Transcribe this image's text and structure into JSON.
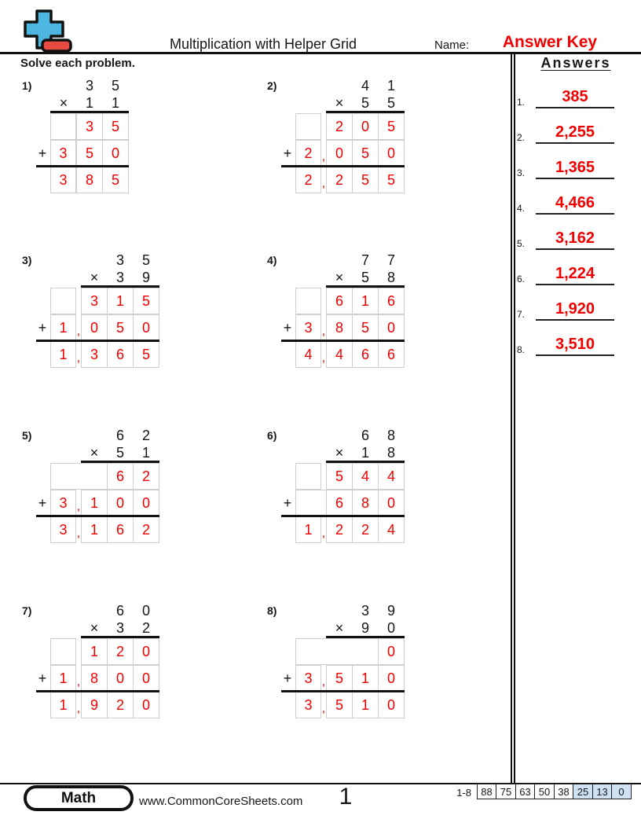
{
  "header": {
    "title": "Multiplication with Helper Grid",
    "name_label": "Name:",
    "name_value": "Answer Key",
    "instructions": "Solve each problem."
  },
  "symbols": {
    "times": "×",
    "plus": "+",
    "comma": ","
  },
  "colors": {
    "accent_red": "#f20000",
    "logo_blue": "#4cb5e0",
    "logo_red": "#e84b3f",
    "score_highlight": "#cfe2f3"
  },
  "problems": [
    {
      "label": "1)",
      "multiplicand": [
        "3",
        "5"
      ],
      "multiplier": [
        "1",
        "1"
      ],
      "columns": 3,
      "rows": [
        {
          "cells": [
            "",
            "3",
            "5"
          ]
        },
        {
          "plus": true,
          "cells": [
            "3",
            "5",
            "0"
          ]
        },
        {
          "total": true,
          "cells": [
            "3",
            "8",
            "5"
          ]
        }
      ]
    },
    {
      "label": "2)",
      "multiplicand": [
        "4",
        "1"
      ],
      "multiplier": [
        "5",
        "5"
      ],
      "columns": 4,
      "rows": [
        {
          "cells": [
            "",
            "2",
            "0",
            "5"
          ]
        },
        {
          "plus": true,
          "comma": true,
          "cells": [
            "2",
            "0",
            "5",
            "0"
          ]
        },
        {
          "total": true,
          "comma": true,
          "cells": [
            "2",
            "2",
            "5",
            "5"
          ]
        }
      ]
    },
    {
      "label": "3)",
      "multiplicand": [
        "3",
        "5"
      ],
      "multiplier": [
        "3",
        "9"
      ],
      "columns": 4,
      "rows": [
        {
          "cells": [
            "",
            "3",
            "1",
            "5"
          ]
        },
        {
          "plus": true,
          "comma": true,
          "cells": [
            "1",
            "0",
            "5",
            "0"
          ]
        },
        {
          "total": true,
          "comma": true,
          "cells": [
            "1",
            "3",
            "6",
            "5"
          ]
        }
      ]
    },
    {
      "label": "4)",
      "multiplicand": [
        "7",
        "7"
      ],
      "multiplier": [
        "5",
        "8"
      ],
      "columns": 4,
      "rows": [
        {
          "cells": [
            "",
            "6",
            "1",
            "6"
          ]
        },
        {
          "plus": true,
          "comma": true,
          "cells": [
            "3",
            "8",
            "5",
            "0"
          ]
        },
        {
          "total": true,
          "comma": true,
          "cells": [
            "4",
            "4",
            "6",
            "6"
          ]
        }
      ]
    },
    {
      "label": "5)",
      "multiplicand": [
        "6",
        "2"
      ],
      "multiplier": [
        "5",
        "1"
      ],
      "columns": 4,
      "rows": [
        {
          "cells": [
            "",
            "6",
            "2"
          ]
        },
        {
          "plus": true,
          "comma": true,
          "cells": [
            "3",
            "1",
            "0",
            "0"
          ]
        },
        {
          "total": true,
          "comma": true,
          "cells": [
            "3",
            "1",
            "6",
            "2"
          ]
        }
      ]
    },
    {
      "label": "6)",
      "multiplicand": [
        "6",
        "8"
      ],
      "multiplier": [
        "1",
        "8"
      ],
      "columns": 4,
      "rows": [
        {
          "cells": [
            "",
            "5",
            "4",
            "4"
          ]
        },
        {
          "plus": true,
          "merged": true,
          "cells": [
            "",
            "6",
            "8",
            "0"
          ]
        },
        {
          "total": true,
          "comma": true,
          "cells": [
            "1",
            "2",
            "2",
            "4"
          ]
        }
      ]
    },
    {
      "label": "7)",
      "multiplicand": [
        "6",
        "0"
      ],
      "multiplier": [
        "3",
        "2"
      ],
      "columns": 4,
      "rows": [
        {
          "cells": [
            "",
            "1",
            "2",
            "0"
          ]
        },
        {
          "plus": true,
          "comma": true,
          "cells": [
            "1",
            "8",
            "0",
            "0"
          ]
        },
        {
          "total": true,
          "comma": true,
          "cells": [
            "1",
            "9",
            "2",
            "0"
          ]
        }
      ]
    },
    {
      "label": "8)",
      "multiplicand": [
        "3",
        "9"
      ],
      "multiplier": [
        "9",
        "0"
      ],
      "columns": 4,
      "rows": [
        {
          "cells": [
            "",
            "0"
          ]
        },
        {
          "plus": true,
          "comma": true,
          "cells": [
            "3",
            "5",
            "1",
            "0"
          ]
        },
        {
          "total": true,
          "comma": true,
          "cells": [
            "3",
            "5",
            "1",
            "0"
          ]
        }
      ]
    }
  ],
  "answers_panel": {
    "title": "Answers",
    "items": [
      {
        "num": "1.",
        "value": "385"
      },
      {
        "num": "2.",
        "value": "2,255"
      },
      {
        "num": "3.",
        "value": "1,365"
      },
      {
        "num": "4.",
        "value": "4,466"
      },
      {
        "num": "5.",
        "value": "3,162"
      },
      {
        "num": "6.",
        "value": "1,224"
      },
      {
        "num": "7.",
        "value": "1,920"
      },
      {
        "num": "8.",
        "value": "3,510"
      }
    ]
  },
  "footer": {
    "subject": "Math",
    "website": "www.CommonCoreSheets.com",
    "page": "1",
    "range_label": "1-8",
    "scores": [
      {
        "value": "88",
        "highlight": false
      },
      {
        "value": "75",
        "highlight": false
      },
      {
        "value": "63",
        "highlight": false
      },
      {
        "value": "50",
        "highlight": false
      },
      {
        "value": "38",
        "highlight": false
      },
      {
        "value": "25",
        "highlight": true
      },
      {
        "value": "13",
        "highlight": true
      },
      {
        "value": "0",
        "highlight": true
      }
    ]
  }
}
